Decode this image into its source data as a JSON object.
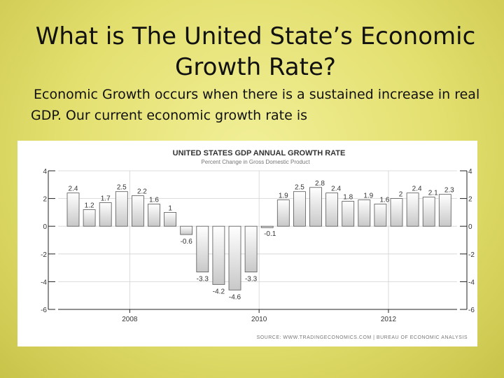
{
  "slide": {
    "title": "What is The United State’s Economic Growth Rate?",
    "bullet_marker": "",
    "bullet": "Economic Growth occurs when there is a sustained increase in real GDP.  Our current economic growth rate is"
  },
  "colors": {
    "bar_fill_top": "#ffffff",
    "bar_fill_bottom": "#c8c8c8",
    "bar_stroke": "#555555",
    "axis": "#222222"
  },
  "chart_data": {
    "type": "bar",
    "title": "UNITED STATES GDP ANNUAL GROWTH RATE",
    "subtitle": "Percent Change in Gross Domestic Product",
    "source": "SOURCE: WWW.TRADINGECONOMICS.COM  |  BUREAU OF ECONOMIC ANALYSIS",
    "values": [
      2.4,
      1.2,
      1.7,
      2.5,
      2.2,
      1.6,
      1,
      -0.6,
      -3.3,
      -4.2,
      -4.6,
      -3.3,
      -0.1,
      1.9,
      2.5,
      2.8,
      2.4,
      1.8,
      1.9,
      1.6,
      2,
      2.4,
      2.1,
      2.3
    ],
    "value_labels": [
      "2.4",
      "1.2",
      "1.7",
      "2.5",
      "2.2",
      "1.6",
      "1",
      "-0.6",
      "-3.3",
      "-4.2",
      "-4.6",
      "-3.3",
      "-0.1",
      "1.9",
      "2.5",
      "2.8",
      "2.4",
      "1.8",
      "1.9",
      "1.6",
      "2",
      "2.4",
      "2.1",
      "2.3"
    ],
    "x_ticks": [
      {
        "index": 4,
        "label": "2008"
      },
      {
        "index": 12,
        "label": "2010"
      },
      {
        "index": 20,
        "label": "2012"
      }
    ],
    "ylim": [
      -6,
      4
    ],
    "yticks": [
      4,
      2,
      0,
      -2,
      -4,
      -6
    ],
    "ytick_labels": [
      "4",
      "2",
      "0",
      "-2",
      "-4",
      "-6"
    ],
    "xlabel": "",
    "ylabel": ""
  }
}
